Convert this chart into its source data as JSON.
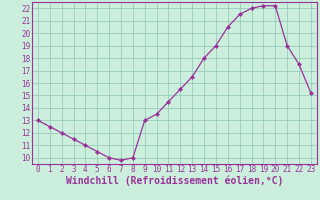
{
  "hours": [
    0,
    1,
    2,
    3,
    4,
    5,
    6,
    7,
    8,
    9,
    10,
    11,
    12,
    13,
    14,
    15,
    16,
    17,
    18,
    19,
    20,
    21,
    22,
    23
  ],
  "values": [
    13.0,
    12.5,
    12.0,
    11.5,
    11.0,
    10.5,
    10.0,
    9.8,
    10.0,
    13.0,
    13.5,
    14.5,
    15.5,
    16.5,
    18.0,
    19.0,
    20.5,
    21.5,
    22.0,
    22.2,
    22.2,
    19.0,
    17.5,
    15.2
  ],
  "xlabel": "Windchill (Refroidissement éolien,°C)",
  "ylim": [
    9.5,
    22.5
  ],
  "xlim": [
    -0.5,
    23.5
  ],
  "yticks": [
    10,
    11,
    12,
    13,
    14,
    15,
    16,
    17,
    18,
    19,
    20,
    21,
    22
  ],
  "xticks": [
    0,
    1,
    2,
    3,
    4,
    5,
    6,
    7,
    8,
    9,
    10,
    11,
    12,
    13,
    14,
    15,
    16,
    17,
    18,
    19,
    20,
    21,
    22,
    23
  ],
  "line_color": "#993399",
  "marker": "D",
  "marker_size": 2.0,
  "bg_color": "#cceedd",
  "grid_color": "#99ccbb",
  "tick_label_fontsize": 5.5,
  "xlabel_fontsize": 7.0
}
